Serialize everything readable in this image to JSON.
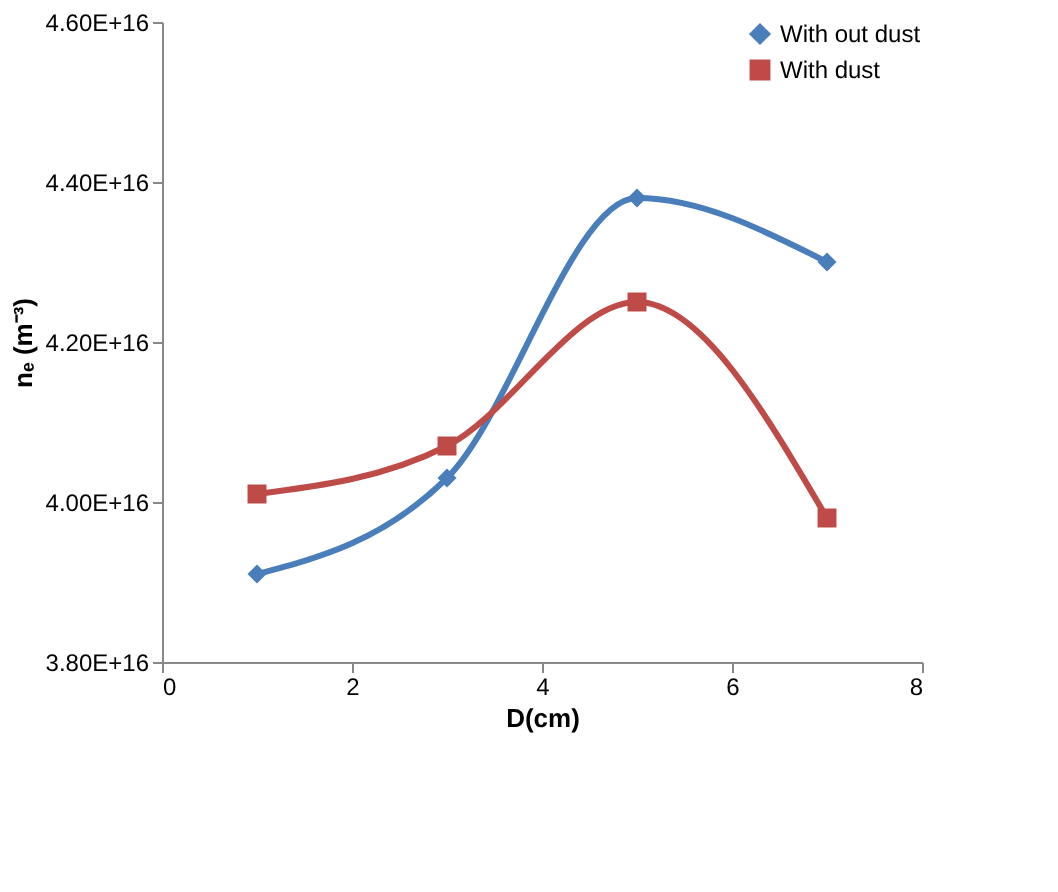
{
  "chart_data": {
    "type": "line",
    "xlabel": "D(cm)",
    "ylabel": "nₑ (m⁻³)",
    "x": [
      1,
      3,
      5,
      7
    ],
    "series": [
      {
        "name": "With out dust",
        "color": "#4a7ebb",
        "marker": "diamond",
        "values": [
          3.91e+16,
          4.03e+16,
          4.38e+16,
          4.3e+16
        ]
      },
      {
        "name": "With dust",
        "color": "#be4b48",
        "marker": "square",
        "values": [
          4.01e+16,
          4.07e+16,
          4.25e+16,
          3.98e+16
        ]
      }
    ],
    "xlim": [
      0,
      8
    ],
    "xticks": [
      0,
      2,
      4,
      6,
      8
    ],
    "ylim": [
      3.8e+16,
      4.6e+16
    ],
    "yticks": [
      {
        "value": 3.8e+16,
        "label": "3.80E+16"
      },
      {
        "value": 4e+16,
        "label": "4.00E+16"
      },
      {
        "value": 4.2e+16,
        "label": "4.20E+16"
      },
      {
        "value": 4.4e+16,
        "label": "4.40E+16"
      },
      {
        "value": 4.6e+16,
        "label": "4.60E+16"
      }
    ],
    "grid": false,
    "legend": "top right",
    "line_style": "solid"
  }
}
